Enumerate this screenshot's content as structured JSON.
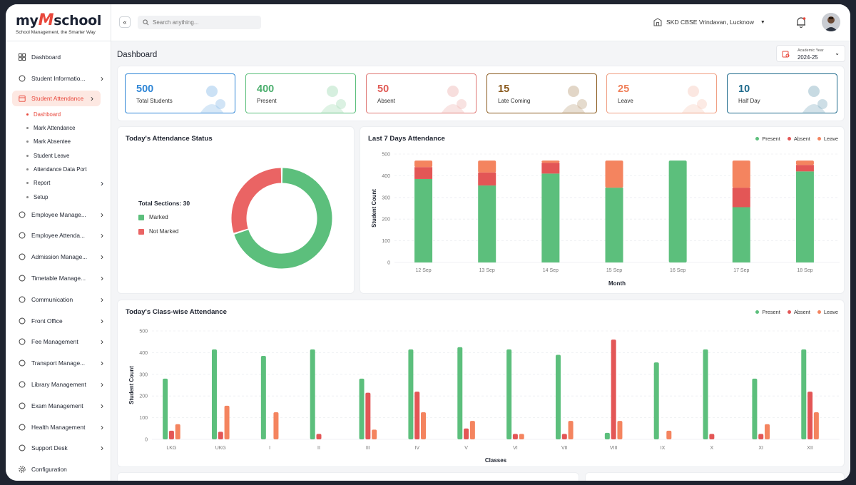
{
  "brand": {
    "name_pre": "my",
    "name_m": "M",
    "name_post": "school",
    "tagline": "School Management, the Smarter Way"
  },
  "header": {
    "search_placeholder": "Search anything...",
    "school": "SKD CBSE Vrindavan, Lucknow"
  },
  "sidebar": {
    "items": [
      {
        "label": "Dashboard",
        "icon": "grid-icon",
        "chev": false
      },
      {
        "label": "Student Informatio...",
        "icon": "graduation-cap-icon",
        "chev": true
      },
      {
        "label": "Student Attendance",
        "icon": "calendar-icon",
        "chev": true,
        "active": true
      },
      {
        "label": "Employee Manage...",
        "icon": "briefcase-icon",
        "chev": true
      },
      {
        "label": "Employee Attenda...",
        "icon": "user-check-icon",
        "chev": true
      },
      {
        "label": "Admission Manage...",
        "icon": "user-plus-icon",
        "chev": true
      },
      {
        "label": "Timetable Manage...",
        "icon": "clock-icon",
        "chev": true
      },
      {
        "label": "Communication",
        "icon": "chat-icon",
        "chev": true
      },
      {
        "label": "Front Office",
        "icon": "building-icon",
        "chev": true
      },
      {
        "label": "Fee Management",
        "icon": "wallet-icon",
        "chev": true
      },
      {
        "label": "Transport Manage...",
        "icon": "bus-icon",
        "chev": true
      },
      {
        "label": "Library Management",
        "icon": "book-icon",
        "chev": true
      },
      {
        "label": "Exam Management",
        "icon": "exam-icon",
        "chev": true
      },
      {
        "label": "Health Management",
        "icon": "heart-icon",
        "chev": true
      },
      {
        "label": "Support Desk",
        "icon": "headset-icon",
        "chev": true
      },
      {
        "label": "Configuration",
        "icon": "gear-icon",
        "chev": false
      }
    ],
    "sub_items": [
      {
        "label": "Dashboard",
        "active": true,
        "chev": false
      },
      {
        "label": "Mark Attendance",
        "chev": false
      },
      {
        "label": "Mark Absentee",
        "chev": false
      },
      {
        "label": "Student Leave",
        "chev": false
      },
      {
        "label": "Attendance Data Port",
        "chev": false
      },
      {
        "label": "Report",
        "chev": true
      },
      {
        "label": "Setup",
        "chev": false
      }
    ]
  },
  "page": {
    "title": "Dashboard",
    "academic_label": "Academic Year",
    "academic_value": "2024-25"
  },
  "cards": [
    {
      "value": "500",
      "label": "Total Students",
      "color": "#2f86d6",
      "border": "#2f86d6",
      "icon": "graduate-icon"
    },
    {
      "value": "400",
      "label": "Present",
      "color": "#4caf6e",
      "border": "#5cbf7c",
      "icon": "user-check-icon"
    },
    {
      "value": "50",
      "label": "Absent",
      "color": "#e05a55",
      "border": "#e07a76",
      "icon": "desk-empty-icon"
    },
    {
      "value": "15",
      "label": "Late Coming",
      "color": "#8a5a1e",
      "border": "#8a5a1e",
      "icon": "running-late-icon"
    },
    {
      "value": "25",
      "label": "Leave",
      "color": "#f0805a",
      "border": "#f0a084",
      "icon": "leave-icon"
    },
    {
      "value": "10",
      "label": "Half Day",
      "color": "#1e6a8c",
      "border": "#1e6a8c",
      "icon": "half-day-icon"
    }
  ],
  "donut": {
    "title": "Today's Attendance Status",
    "total_label": "Total Sections: 30",
    "legend": [
      {
        "label": "Marked",
        "color": "#5cbf7c"
      },
      {
        "label": "Not Marked",
        "color": "#ea6464"
      }
    ],
    "values": [
      21,
      9
    ]
  },
  "legend": [
    {
      "label": "Present",
      "color": "#5cbf7c"
    },
    {
      "label": "Absent",
      "color": "#e35656"
    },
    {
      "label": "Leave",
      "color": "#f4845f"
    }
  ],
  "chart_data": [
    {
      "type": "bar",
      "title": "Last 7 Days Attendance",
      "xlabel": "Month",
      "ylabel": "Student Count",
      "ylim": [
        0,
        500
      ],
      "yticks": [
        0,
        100,
        200,
        300,
        400,
        500
      ],
      "stacked": true,
      "legend_position": "top-right",
      "categories": [
        "12 Sep",
        "13 Sep",
        "14 Sep",
        "15 Sep",
        "16 Sep",
        "17 Sep",
        "18 Sep"
      ],
      "series": [
        {
          "name": "Present",
          "values": [
            385,
            355,
            410,
            345,
            470,
            255,
            420
          ]
        },
        {
          "name": "Absent",
          "values": [
            55,
            60,
            50,
            0,
            0,
            90,
            30
          ]
        },
        {
          "name": "Leave",
          "values": [
            30,
            55,
            10,
            125,
            0,
            125,
            20
          ]
        }
      ]
    },
    {
      "type": "bar",
      "title": "Today's Class-wise Attendance",
      "xlabel": "Classes",
      "ylabel": "Student Count",
      "ylim": [
        0,
        500
      ],
      "yticks": [
        0,
        100,
        200,
        300,
        400,
        500
      ],
      "stacked": false,
      "legend_position": "top-right",
      "categories": [
        "LKG",
        "UKG",
        "I",
        "II",
        "III",
        "IV",
        "V",
        "VI",
        "VII",
        "VIII",
        "IX",
        "X",
        "XI",
        "XII"
      ],
      "series": [
        {
          "name": "Present",
          "values": [
            280,
            415,
            385,
            415,
            280,
            415,
            425,
            415,
            390,
            30,
            355,
            415,
            280,
            415
          ]
        },
        {
          "name": "Absent",
          "values": [
            40,
            35,
            0,
            25,
            215,
            220,
            50,
            25,
            25,
            460,
            0,
            25,
            25,
            220
          ]
        },
        {
          "name": "Leave",
          "values": [
            70,
            155,
            125,
            0,
            45,
            125,
            85,
            25,
            85,
            85,
            40,
            0,
            70,
            125
          ]
        }
      ]
    }
  ]
}
